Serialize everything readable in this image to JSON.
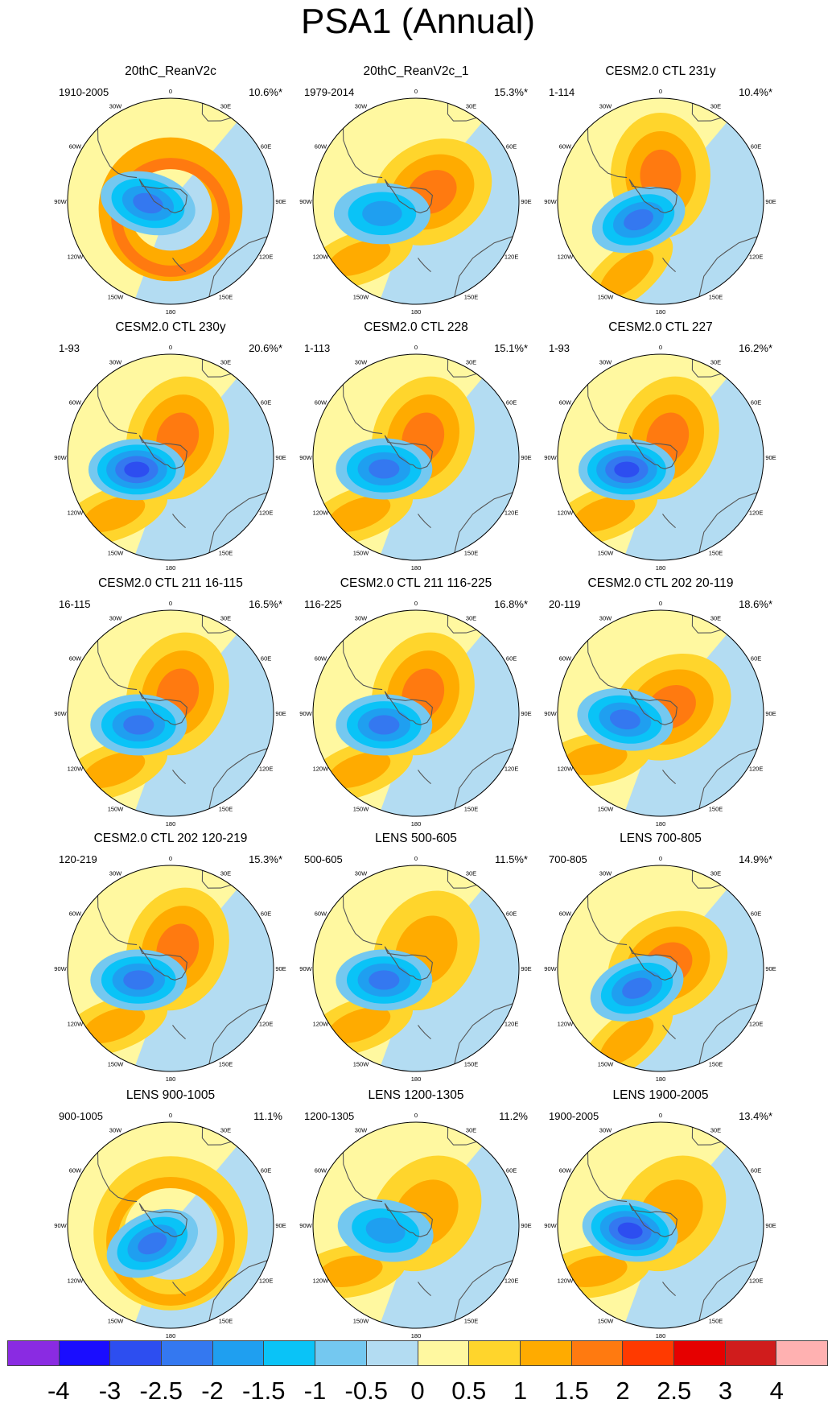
{
  "figure": {
    "title": "PSA1 (Annual)",
    "lon_labels": [
      "0",
      "30E",
      "60E",
      "90E",
      "120E",
      "150E",
      "180",
      "150W",
      "120W",
      "90W",
      "60W",
      "30W"
    ]
  },
  "panels": [
    {
      "title": "20thC_ReanV2c",
      "years": "1910-2005",
      "variance": "10.6%*",
      "low": {
        "lon": -95,
        "r": 0.22,
        "min": -2.0
      },
      "high": {
        "lon": 170,
        "r": 0.55,
        "max": 1.5
      },
      "style": "ring"
    },
    {
      "title": "20thC_ReanV2c_1",
      "years": "1979-2014",
      "variance": "15.3%*",
      "low": {
        "lon": -110,
        "r": 0.35,
        "min": -1.5
      },
      "high": {
        "lon": 60,
        "r": 0.18,
        "max": 1.5
      },
      "style": "dipole"
    },
    {
      "title": "CESM2.0 CTL 231y",
      "years": "1-114",
      "variance": "10.4%*",
      "low": {
        "lon": -130,
        "r": 0.28,
        "min": -2.0
      },
      "high": {
        "lon": 0,
        "r": 0.25,
        "max": 1.5
      },
      "style": "dipole"
    },
    {
      "title": "CESM2.0 CTL 230y",
      "years": "1-93",
      "variance": "20.6%*",
      "low": {
        "lon": -110,
        "r": 0.35,
        "min": -2.5
      },
      "high": {
        "lon": 20,
        "r": 0.2,
        "max": 1.5
      },
      "style": "dipole"
    },
    {
      "title": "CESM2.0 CTL 228",
      "years": "1-113",
      "variance": "15.1%*",
      "low": {
        "lon": -110,
        "r": 0.33,
        "min": -2.0
      },
      "high": {
        "lon": 20,
        "r": 0.2,
        "max": 1.5
      },
      "style": "dipole"
    },
    {
      "title": "CESM2.0 CTL 227",
      "years": "1-93",
      "variance": "16.2%*",
      "low": {
        "lon": -110,
        "r": 0.35,
        "min": -2.5
      },
      "high": {
        "lon": 20,
        "r": 0.2,
        "max": 1.5
      },
      "style": "dipole"
    },
    {
      "title": "CESM2.0 CTL 211 16-115",
      "years": "16-115",
      "variance": "16.5%*",
      "low": {
        "lon": -110,
        "r": 0.33,
        "min": -2.0
      },
      "high": {
        "lon": 20,
        "r": 0.2,
        "max": 1.5
      },
      "style": "dipole"
    },
    {
      "title": "CESM2.0 CTL 211 116-225",
      "years": "116-225",
      "variance": "16.8%*",
      "low": {
        "lon": -110,
        "r": 0.33,
        "min": -2.0
      },
      "high": {
        "lon": 20,
        "r": 0.2,
        "max": 1.5
      },
      "style": "dipole"
    },
    {
      "title": "CESM2.0 CTL 202 20-119",
      "years": "20-119",
      "variance": "18.6%*",
      "low": {
        "lon": -100,
        "r": 0.35,
        "min": -2.0
      },
      "high": {
        "lon": 60,
        "r": 0.12,
        "max": 1.5
      },
      "style": "dipole"
    },
    {
      "title": "CESM2.0 CTL 202 120-219",
      "years": "120-219",
      "variance": "15.3%*",
      "low": {
        "lon": -110,
        "r": 0.33,
        "min": -2.0
      },
      "high": {
        "lon": 20,
        "r": 0.2,
        "max": 1.5
      },
      "style": "dipole"
    },
    {
      "title": "LENS 500-605",
      "years": "500-605",
      "variance": "11.5%*",
      "low": {
        "lon": -110,
        "r": 0.33,
        "min": -2.0
      },
      "high": {
        "lon": 30,
        "r": 0.2,
        "max": 1.0
      },
      "style": "dipole"
    },
    {
      "title": "LENS 700-805",
      "years": "700-805",
      "variance": "14.9%*",
      "low": {
        "lon": -130,
        "r": 0.3,
        "min": -2.0
      },
      "high": {
        "lon": 60,
        "r": 0.08,
        "max": 1.5
      },
      "style": "dipole"
    },
    {
      "title": "LENS 900-1005",
      "years": "900-1005",
      "variance": "11.1%",
      "low": {
        "lon": -135,
        "r": 0.25,
        "min": -2.0
      },
      "high": {
        "lon": 170,
        "r": 0.6,
        "max": 1.0
      },
      "style": "ring"
    },
    {
      "title": "LENS 1200-1305",
      "years": "1200-1305",
      "variance": "11.2%",
      "low": {
        "lon": -100,
        "r": 0.3,
        "min": -1.5
      },
      "high": {
        "lon": 40,
        "r": 0.15,
        "max": 1.0
      },
      "style": "dipole"
    },
    {
      "title": "LENS 1900-2005",
      "years": "1900-2005",
      "variance": "13.4%*",
      "low": {
        "lon": -100,
        "r": 0.3,
        "min": -2.5
      },
      "high": {
        "lon": 40,
        "r": 0.15,
        "max": 1.0
      },
      "style": "dipole"
    }
  ],
  "colorbar": {
    "labels": [
      "-4",
      "-3",
      "-2.5",
      "-2",
      "-1.5",
      "-1",
      "-0.5",
      "0",
      "0.5",
      "1",
      "1.5",
      "2",
      "2.5",
      "3",
      "4"
    ],
    "colors": [
      "#8a2be2",
      "#1a0dff",
      "#2d4ef0",
      "#3478f0",
      "#1f9ff0",
      "#0ac3f7",
      "#74c8f0",
      "#b3dcf2",
      "#fff8a0",
      "#ffd52c",
      "#ffab00",
      "#ff7a10",
      "#ff3a00",
      "#e60000",
      "#d01c1c",
      "#ffb1b1"
    ]
  }
}
